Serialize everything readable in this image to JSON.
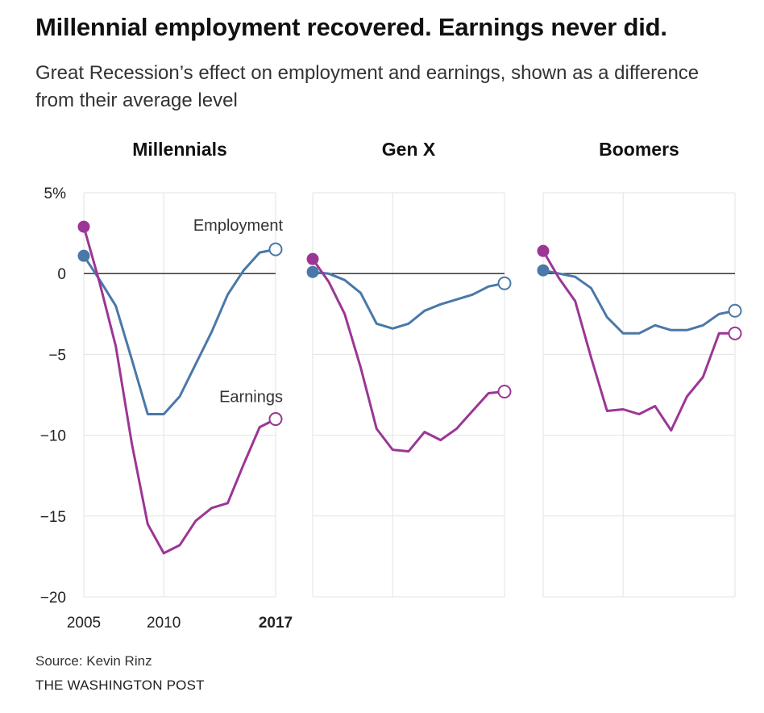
{
  "title": "Millennial employment recovered. Earnings never did.",
  "subtitle": "Great Recession’s effect on employment and earnings, shown as a difference from their average level",
  "source": "Source: Kevin Rinz",
  "credit": "THE WASHINGTON POST",
  "colors": {
    "employment": "#4a78a8",
    "earnings": "#9c3695",
    "grid": "#e3e3e3",
    "zero": "#222222"
  },
  "chart_data": {
    "type": "line",
    "ylim": [
      -20,
      5
    ],
    "xlim": [
      2005,
      2017
    ],
    "y_ticks": [
      {
        "value": 5,
        "label": "5%"
      },
      {
        "value": 0,
        "label": "0"
      },
      {
        "value": -5,
        "label": "−5"
      },
      {
        "value": -10,
        "label": "−10"
      },
      {
        "value": -15,
        "label": "−15"
      },
      {
        "value": -20,
        "label": "−20"
      }
    ],
    "x_ticks": [
      {
        "value": 2005,
        "label": "2005",
        "bold": false
      },
      {
        "value": 2010,
        "label": "2010",
        "bold": false
      },
      {
        "value": 2017,
        "label": "2017",
        "bold": true
      }
    ],
    "x": [
      2005,
      2006,
      2007,
      2008,
      2009,
      2010,
      2011,
      2012,
      2013,
      2014,
      2015,
      2016,
      2017
    ],
    "panels": [
      {
        "name": "Millennials",
        "series_labels": {
          "employment": "Employment",
          "earnings": "Earnings"
        },
        "series": [
          {
            "key": "employment",
            "values": [
              1.1,
              -0.4,
              -2.0,
              -5.3,
              -8.7,
              -8.7,
              -7.6,
              -5.6,
              -3.6,
              -1.3,
              0.2,
              1.3,
              1.5
            ]
          },
          {
            "key": "earnings",
            "values": [
              2.9,
              -0.6,
              -4.5,
              -10.5,
              -15.5,
              -17.3,
              -16.8,
              -15.3,
              -14.5,
              -14.2,
              -11.8,
              -9.5,
              -9.0
            ]
          }
        ]
      },
      {
        "name": "Gen X",
        "series_labels": {},
        "series": [
          {
            "key": "employment",
            "values": [
              0.1,
              0.0,
              -0.4,
              -1.2,
              -3.1,
              -3.4,
              -3.1,
              -2.3,
              -1.9,
              -1.6,
              -1.3,
              -0.8,
              -0.6
            ]
          },
          {
            "key": "earnings",
            "values": [
              0.9,
              -0.5,
              -2.5,
              -5.8,
              -9.6,
              -10.9,
              -11.0,
              -9.8,
              -10.3,
              -9.6,
              -8.5,
              -7.4,
              -7.3
            ]
          }
        ]
      },
      {
        "name": "Boomers",
        "series_labels": {},
        "series": [
          {
            "key": "employment",
            "values": [
              0.2,
              0.0,
              -0.2,
              -0.9,
              -2.7,
              -3.7,
              -3.7,
              -3.2,
              -3.5,
              -3.5,
              -3.2,
              -2.5,
              -2.3
            ]
          },
          {
            "key": "earnings",
            "values": [
              1.4,
              -0.3,
              -1.7,
              -5.2,
              -8.5,
              -8.4,
              -8.7,
              -8.2,
              -9.7,
              -7.6,
              -6.4,
              -3.7,
              -3.7
            ]
          }
        ]
      }
    ]
  }
}
